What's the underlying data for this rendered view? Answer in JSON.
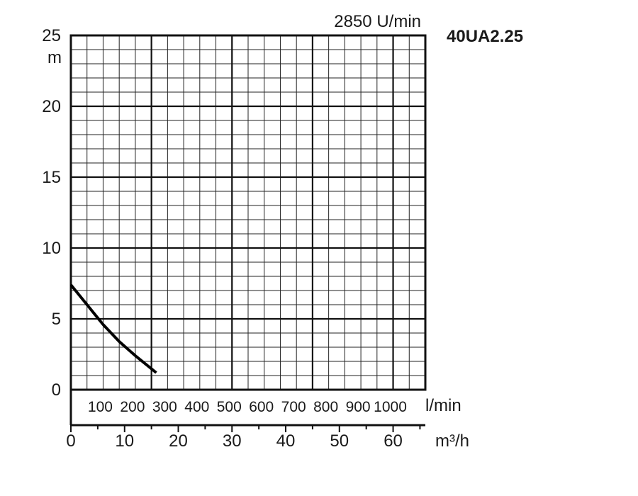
{
  "chart_data": {
    "type": "line",
    "title": "40UA2.25",
    "subtitle": "2850 U/min",
    "ylabel": "m",
    "ylim": [
      0,
      25
    ],
    "yticks": [
      "0",
      "5",
      "10",
      "15",
      "20",
      "25"
    ],
    "x_primary": {
      "unit": "l/min",
      "lim": [
        0,
        1100
      ],
      "tick_labels": [
        "100",
        "200",
        "300",
        "400",
        "500",
        "600",
        "700",
        "800",
        "900",
        "1000"
      ]
    },
    "x_secondary": {
      "unit": "m³/h",
      "lim": [
        0,
        66
      ],
      "tick_labels": [
        "0",
        "10",
        "20",
        "30",
        "40",
        "50",
        "60"
      ]
    },
    "grid": true,
    "series": [
      {
        "values_lmin": [
          0,
          50,
          100,
          150,
          200,
          265
        ],
        "values_m": [
          7.4,
          6.0,
          4.6,
          3.4,
          2.4,
          1.2
        ]
      }
    ]
  }
}
